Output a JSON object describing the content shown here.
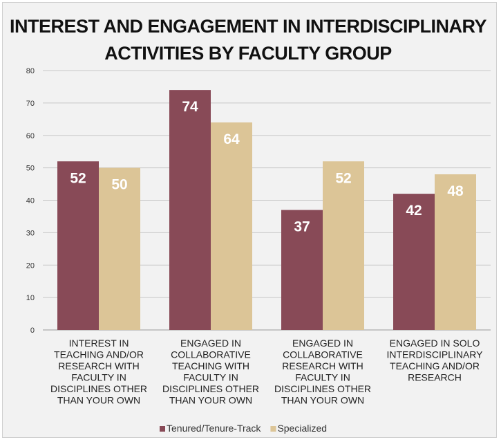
{
  "chart_data": {
    "type": "bar",
    "title_lines": [
      "INTEREST AND ENGAGEMENT IN INTERDISCIPLINARY",
      "ACTIVITIES BY FACULTY GROUP"
    ],
    "categories": [
      [
        "INTEREST IN",
        "TEACHING AND/OR",
        "RESEARCH WITH",
        "FACULTY IN",
        "DISCIPLINES OTHER",
        "THAN YOUR OWN"
      ],
      [
        "ENGAGED IN",
        "COLLABORATIVE",
        "TEACHING WITH",
        "FACULTY IN",
        "DISCIPLINES OTHER",
        "THAN YOUR OWN"
      ],
      [
        "ENGAGED IN",
        "COLLABORATIVE",
        "RESEARCH WITH",
        "FACULTY IN",
        "DISCIPLINES OTHER",
        "THAN YOUR OWN"
      ],
      [
        "ENGAGED IN SOLO",
        "INTERDISCIPLINARY",
        "TEACHING AND/OR",
        "RESEARCH"
      ]
    ],
    "series": [
      {
        "name": "Tenured/Tenure-Track",
        "color": "#884a57",
        "values": [
          52,
          74,
          37,
          42
        ],
        "labels": [
          "52",
          "74",
          "37",
          "42"
        ]
      },
      {
        "name": "Specialized",
        "color": "#dcc597",
        "values": [
          50,
          64,
          52,
          48
        ],
        "labels": [
          "50",
          "64",
          "52",
          "48"
        ]
      }
    ],
    "ylim": [
      0,
      80
    ],
    "yticks": [
      0,
      10,
      20,
      30,
      40,
      50,
      60,
      70,
      80
    ],
    "grid": true,
    "legend": "bottom"
  }
}
